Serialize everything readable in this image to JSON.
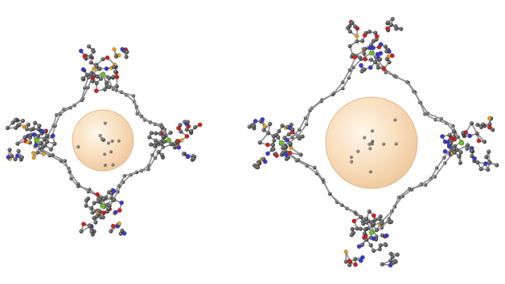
{
  "figure": {
    "panels": [
      {
        "id": "small-cage",
        "description_shown": false,
        "atom_colors": {
          "carbon": "#555555",
          "bond": "#8a8a8a",
          "oxygen": "#d42020",
          "nitrogen": "#3a3ad0",
          "sulfur": "#e8a317",
          "metal": "#6fbf2a"
        },
        "cavity_sphere_color": "#f3c995"
      },
      {
        "id": "large-cage",
        "description_shown": false,
        "atom_colors": {
          "carbon": "#555555",
          "bond": "#8a8a8a",
          "oxygen": "#d42020",
          "nitrogen": "#3a3ad0",
          "sulfur": "#e8a317",
          "metal": "#6fbf2a"
        },
        "cavity_sphere_color": "#f3c995"
      }
    ]
  }
}
